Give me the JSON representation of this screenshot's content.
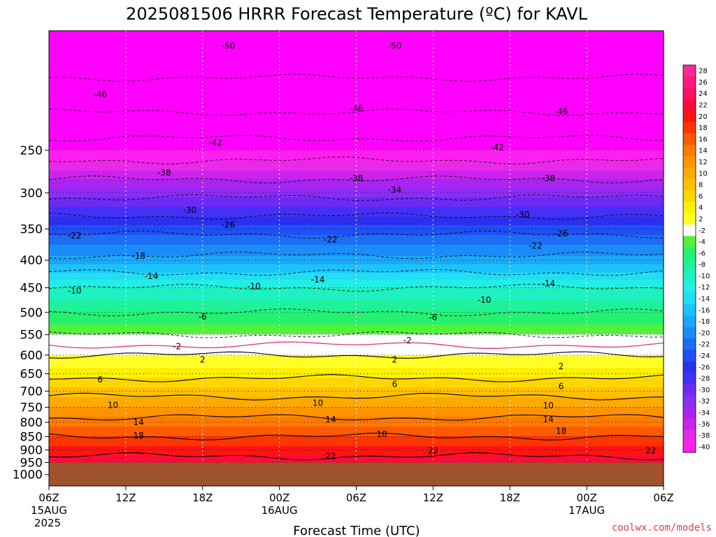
{
  "chart_data": {
    "type": "heatmap",
    "title": "2025081506 HRRR Forecast Temperature (ºC) for KAVL",
    "xlabel": "Forecast Time (UTC)",
    "ylabel": "",
    "y_axis": "pressure (hPa), inverted",
    "ylim": [
      1050,
      150
    ],
    "xlim": [
      0,
      48
    ],
    "y_ticks": [
      250,
      300,
      350,
      400,
      450,
      500,
      550,
      600,
      650,
      700,
      750,
      800,
      850,
      900,
      950,
      1000
    ],
    "x_ticks": [
      {
        "hour": 0,
        "label": "06Z",
        "sub": "15AUG",
        "sub2": "2025"
      },
      {
        "hour": 6,
        "label": "12Z",
        "sub": "",
        "sub2": ""
      },
      {
        "hour": 12,
        "label": "18Z",
        "sub": "",
        "sub2": ""
      },
      {
        "hour": 18,
        "label": "00Z",
        "sub": "16AUG",
        "sub2": ""
      },
      {
        "hour": 24,
        "label": "06Z",
        "sub": "",
        "sub2": ""
      },
      {
        "hour": 30,
        "label": "12Z",
        "sub": "",
        "sub2": ""
      },
      {
        "hour": 36,
        "label": "18Z",
        "sub": "",
        "sub2": ""
      },
      {
        "hour": 42,
        "label": "00Z",
        "sub": "17AUG",
        "sub2": ""
      },
      {
        "hour": 48,
        "label": "06Z",
        "sub": "",
        "sub2": ""
      }
    ],
    "surface_pressure_hPa": 950,
    "colorbar": {
      "unit": "ºC",
      "labels": [
        28,
        26,
        24,
        22,
        20,
        18,
        16,
        14,
        12,
        10,
        8,
        6,
        4,
        2,
        -2,
        -4,
        -6,
        -8,
        -10,
        -12,
        -14,
        -16,
        -18,
        -20,
        -22,
        -24,
        -26,
        -28,
        -30,
        -32,
        -34,
        -36,
        -38,
        -40
      ]
    },
    "temperature_profile": {
      "pressure_hPa": [
        150,
        200,
        250,
        300,
        350,
        400,
        450,
        500,
        550,
        600,
        650,
        700,
        750,
        800,
        850,
        900,
        950
      ],
      "temperature_C": [
        -54,
        -48,
        -40,
        -31,
        -23,
        -17,
        -10,
        -6,
        -2,
        2,
        5,
        9,
        12,
        15,
        18,
        21,
        23
      ]
    },
    "contour_labels": [
      {
        "value": -50,
        "hour": 14,
        "p": 160
      },
      {
        "value": -50,
        "hour": 27,
        "p": 160
      },
      {
        "value": -46,
        "hour": 4,
        "p": 197
      },
      {
        "value": -46,
        "hour": 24,
        "p": 209
      },
      {
        "value": -46,
        "hour": 40,
        "p": 212
      },
      {
        "value": -42,
        "hour": 13,
        "p": 242
      },
      {
        "value": -42,
        "hour": 35,
        "p": 247
      },
      {
        "value": -38,
        "hour": 9,
        "p": 275
      },
      {
        "value": -38,
        "hour": 24,
        "p": 282
      },
      {
        "value": -38,
        "hour": 39,
        "p": 282
      },
      {
        "value": -34,
        "hour": 27,
        "p": 296
      },
      {
        "value": -30,
        "hour": 11,
        "p": 323
      },
      {
        "value": -30,
        "hour": 37,
        "p": 329
      },
      {
        "value": -26,
        "hour": 14,
        "p": 344
      },
      {
        "value": -26,
        "hour": 40,
        "p": 357
      },
      {
        "value": -22,
        "hour": 2,
        "p": 360
      },
      {
        "value": -22,
        "hour": 22,
        "p": 366
      },
      {
        "value": -22,
        "hour": 38,
        "p": 376
      },
      {
        "value": -18,
        "hour": 7,
        "p": 393
      },
      {
        "value": -14,
        "hour": 8,
        "p": 428
      },
      {
        "value": -14,
        "hour": 21,
        "p": 435
      },
      {
        "value": -14,
        "hour": 39,
        "p": 442
      },
      {
        "value": -10,
        "hour": 2,
        "p": 456
      },
      {
        "value": -10,
        "hour": 16,
        "p": 447
      },
      {
        "value": -10,
        "hour": 34,
        "p": 474
      },
      {
        "value": -6,
        "hour": 12,
        "p": 509
      },
      {
        "value": -6,
        "hour": 30,
        "p": 511
      },
      {
        "value": -2,
        "hour": 10,
        "p": 578
      },
      {
        "value": -2,
        "hour": 28,
        "p": 564
      },
      {
        "value": 2,
        "hour": 12,
        "p": 612
      },
      {
        "value": 2,
        "hour": 27,
        "p": 612
      },
      {
        "value": 2,
        "hour": 40,
        "p": 630
      },
      {
        "value": 6,
        "hour": 4,
        "p": 667
      },
      {
        "value": 6,
        "hour": 27,
        "p": 680
      },
      {
        "value": 6,
        "hour": 40,
        "p": 686
      },
      {
        "value": 10,
        "hour": 5,
        "p": 744
      },
      {
        "value": 10,
        "hour": 21,
        "p": 737
      },
      {
        "value": 10,
        "hour": 39,
        "p": 745
      },
      {
        "value": 14,
        "hour": 7,
        "p": 800
      },
      {
        "value": 14,
        "hour": 22,
        "p": 791
      },
      {
        "value": 14,
        "hour": 39,
        "p": 789
      },
      {
        "value": 18,
        "hour": 7,
        "p": 847
      },
      {
        "value": 18,
        "hour": 26,
        "p": 842
      },
      {
        "value": 18,
        "hour": 40,
        "p": 831
      },
      {
        "value": 22,
        "hour": 22,
        "p": 925
      },
      {
        "value": 22,
        "hour": 30,
        "p": 903
      },
      {
        "value": 22,
        "hour": 47,
        "p": 903
      }
    ]
  },
  "credit": "coolwx.com/models",
  "colors": {
    "ground": "#a0522d",
    "zero_line": "#e0308a",
    "credit": "#e04040"
  }
}
